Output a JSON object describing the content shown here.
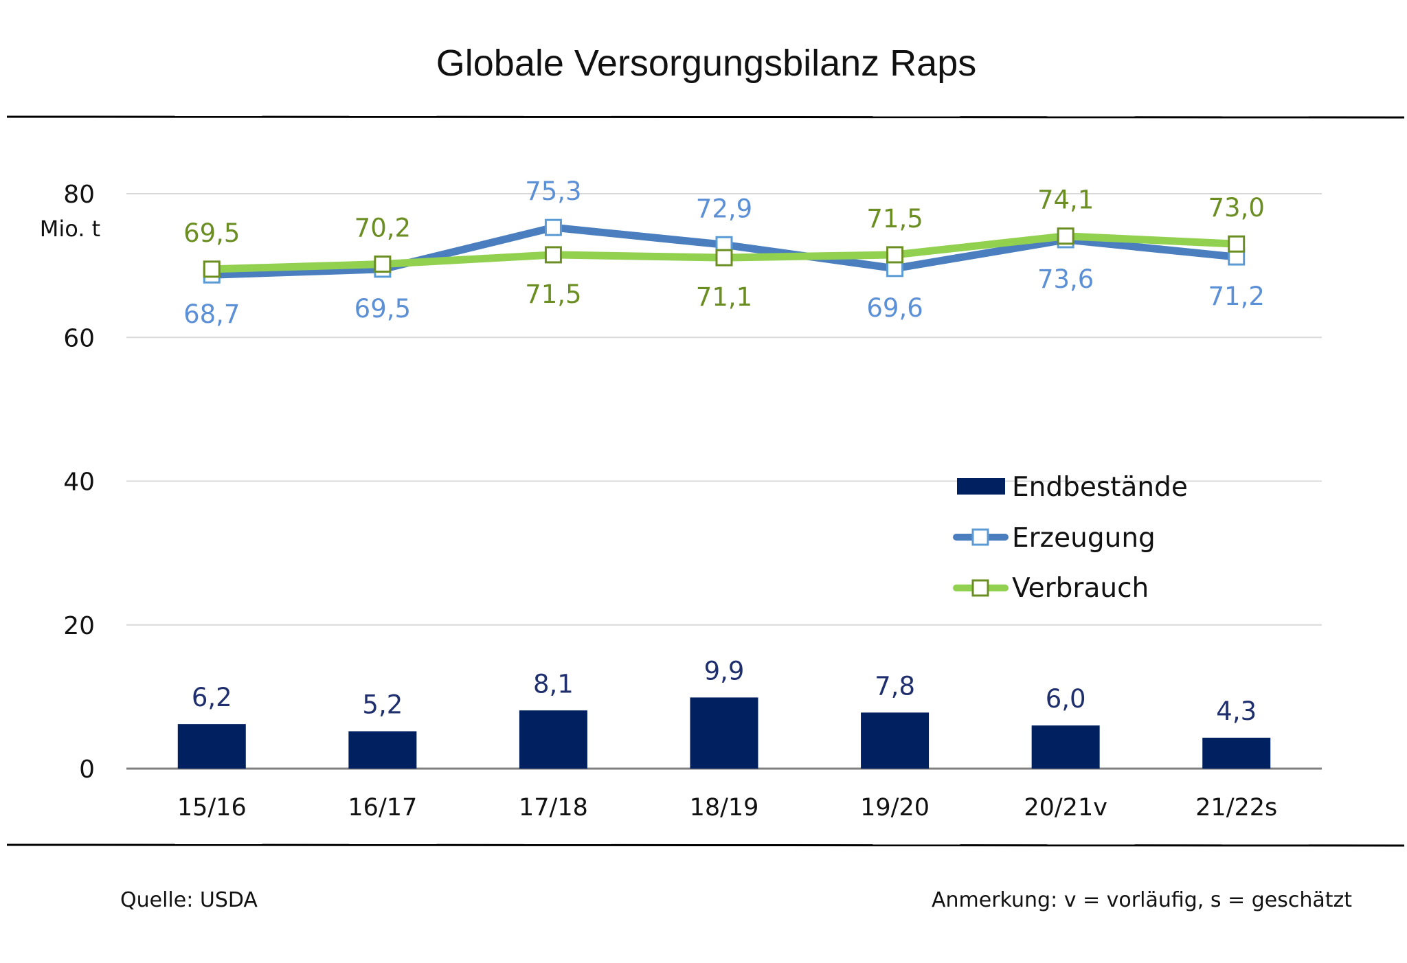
{
  "colors": {
    "bar": "#002060",
    "erzeugung_line": "#4a7ebf",
    "erzeugung_marker": "#5b9bd5",
    "erzeugung_label": "#5b8fd6",
    "verbrauch_line": "#92d050",
    "verbrauch_marker": "#6b8e23",
    "verbrauch_label": "#6b8e23",
    "bar_label": "#1f2f6e",
    "grid": "#d9d9d9",
    "axis": "#808080",
    "rule": "#000000"
  },
  "footer": {
    "source": "Quelle: USDA",
    "note": "Anmerkung: v = vorläufig, s = geschätzt"
  },
  "chart_data": {
    "type": "bar+line",
    "title": "Globale Versorgungsbilanz Raps",
    "ylabel": "Mio. t",
    "xlabel": "",
    "ylim": [
      0,
      80
    ],
    "yticks": [
      "0",
      "20",
      "40",
      "60",
      "80"
    ],
    "ytick_values": [
      0,
      20,
      40,
      60,
      80
    ],
    "grid": true,
    "legend_position": "right",
    "categories": [
      "15/16",
      "16/17",
      "17/18",
      "18/19",
      "19/20",
      "20/21v",
      "21/22s"
    ],
    "series": [
      {
        "name": "Endbestände",
        "type": "bar",
        "values": [
          6.2,
          5.2,
          8.1,
          9.9,
          7.8,
          6.0,
          4.3
        ],
        "labels": [
          "6,2",
          "5,2",
          "8,1",
          "9,9",
          "7,8",
          "6,0",
          "4,3"
        ]
      },
      {
        "name": "Erzeugung",
        "type": "line",
        "values": [
          68.7,
          69.5,
          75.3,
          72.9,
          69.6,
          73.6,
          71.2
        ],
        "labels": [
          "68,7",
          "69,5",
          "75,3",
          "72,9",
          "69,6",
          "73,6",
          "71,2"
        ],
        "label_positions": [
          "below",
          "below",
          "above",
          "above",
          "below",
          "below",
          "below"
        ]
      },
      {
        "name": "Verbrauch",
        "type": "line",
        "values": [
          69.5,
          70.2,
          71.5,
          71.1,
          71.5,
          74.1,
          73.0
        ],
        "labels": [
          "69,5",
          "70,2",
          "71,5",
          "71,1",
          "71,5",
          "74,1",
          "73,0"
        ],
        "label_positions": [
          "above",
          "above",
          "below",
          "below",
          "above",
          "above",
          "above"
        ]
      }
    ]
  }
}
